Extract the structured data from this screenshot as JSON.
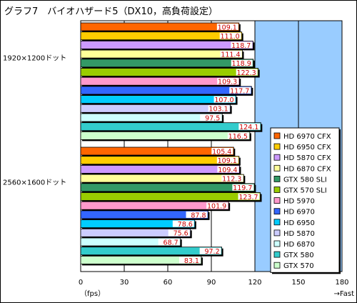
{
  "chart_data": {
    "type": "bar",
    "orientation": "horizontal",
    "title": "グラフ7　バイオハザード5（DX10，高負荷設定）",
    "x_unit_label": "（fps）",
    "x_direction_label": "→Fast",
    "xlim": [
      0,
      180
    ],
    "x_ticks": [
      "0",
      "30",
      "60",
      "90",
      "120",
      "150",
      "180"
    ],
    "grid": true,
    "legend_position": "right",
    "groups": [
      "1920×1200ドット",
      "2560×1600ドット"
    ],
    "series": [
      {
        "name": "HD 6970 CFX",
        "color": "#ff6600",
        "values": [
          109.1,
          105.4
        ]
      },
      {
        "name": "HD 6950 CFX",
        "color": "#ffcc00",
        "values": [
          111.0,
          109.1
        ]
      },
      {
        "name": "HD 5870 CFX",
        "color": "#cc99ff",
        "values": [
          118.7,
          109.4
        ]
      },
      {
        "name": "HD 6870 CFX",
        "color": "#ffff99",
        "values": [
          111.4,
          112.3
        ]
      },
      {
        "name": "GTX 580 SLI",
        "color": "#339966",
        "values": [
          118.9,
          119.7
        ]
      },
      {
        "name": "GTX 570 SLI",
        "color": "#99cc00",
        "values": [
          122.3,
          123.7
        ]
      },
      {
        "name": "HD 5970",
        "color": "#ff99cc",
        "values": [
          109.3,
          101.9
        ]
      },
      {
        "name": "HD 6970",
        "color": "#3366ff",
        "values": [
          117.7,
          87.8
        ]
      },
      {
        "name": "HD 6950",
        "color": "#00ccff",
        "values": [
          107.0,
          78.6
        ]
      },
      {
        "name": "HD 5870",
        "color": "#ccccff",
        "values": [
          103.1,
          75.6
        ]
      },
      {
        "name": "HD 6870",
        "color": "#ccffff",
        "values": [
          97.5,
          68.7
        ]
      },
      {
        "name": "GTX 580",
        "color": "#33cccc",
        "values": [
          124.1,
          97.2
        ]
      },
      {
        "name": "GTX 570",
        "color": "#ccffcc",
        "values": [
          116.5,
          83.1
        ]
      }
    ]
  },
  "colors": {
    "plot_left": "#ffffff",
    "plot_right": "#99ccff",
    "value_label_bg": "#ffffff",
    "value_label_text": "#cc0000",
    "gridline": "#000000"
  }
}
